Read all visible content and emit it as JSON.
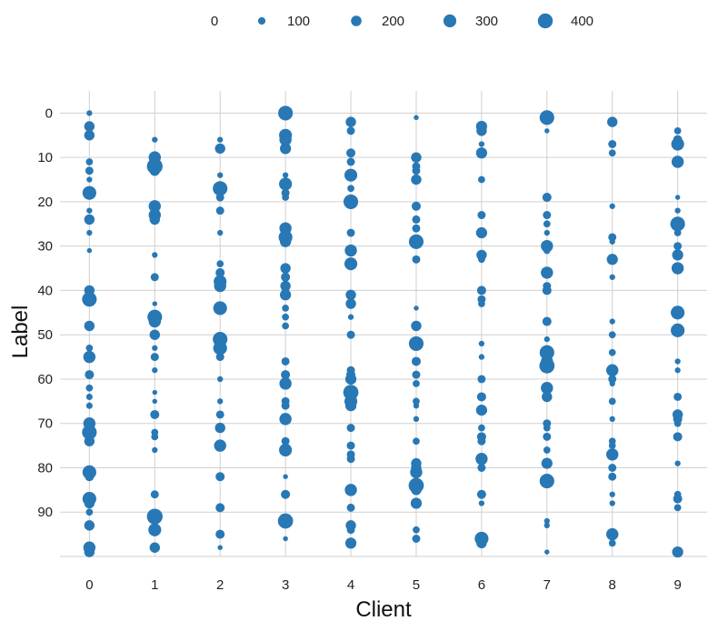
{
  "chart_data": {
    "type": "scatter",
    "encoding": "bubble",
    "xlabel": "Client",
    "ylabel": "Label",
    "y_inverted": true,
    "x_ticks": [
      0,
      1,
      2,
      3,
      4,
      5,
      6,
      7,
      8,
      9
    ],
    "y_ticks": [
      0,
      10,
      20,
      30,
      40,
      50,
      60,
      70,
      80,
      90
    ],
    "xlim": [
      -0.45,
      9.45
    ],
    "ylim": [
      100,
      -5
    ],
    "grid": true,
    "legend_placement": "top",
    "size_legend": [
      {
        "label": "0",
        "value": 0
      },
      {
        "label": "100",
        "value": 100
      },
      {
        "label": "200",
        "value": 200
      },
      {
        "label": "300",
        "value": 300
      },
      {
        "label": "400",
        "value": 400
      }
    ],
    "color": "#2878b5",
    "points": [
      {
        "x": 0,
        "y": 0,
        "size": 40
      },
      {
        "x": 0,
        "y": 3,
        "size": 130
      },
      {
        "x": 0,
        "y": 5,
        "size": 130
      },
      {
        "x": 0,
        "y": 11,
        "size": 60
      },
      {
        "x": 0,
        "y": 13,
        "size": 80
      },
      {
        "x": 0,
        "y": 15,
        "size": 40
      },
      {
        "x": 0,
        "y": 18,
        "size": 230
      },
      {
        "x": 0,
        "y": 22,
        "size": 40
      },
      {
        "x": 0,
        "y": 24,
        "size": 130
      },
      {
        "x": 0,
        "y": 27,
        "size": 40
      },
      {
        "x": 0,
        "y": 31,
        "size": 30
      },
      {
        "x": 0,
        "y": 40,
        "size": 130
      },
      {
        "x": 0,
        "y": 42,
        "size": 260
      },
      {
        "x": 0,
        "y": 48,
        "size": 130
      },
      {
        "x": 0,
        "y": 53,
        "size": 60
      },
      {
        "x": 0,
        "y": 55,
        "size": 180
      },
      {
        "x": 0,
        "y": 59,
        "size": 100
      },
      {
        "x": 0,
        "y": 62,
        "size": 60
      },
      {
        "x": 0,
        "y": 64,
        "size": 50
      },
      {
        "x": 0,
        "y": 66,
        "size": 50
      },
      {
        "x": 0,
        "y": 70,
        "size": 180
      },
      {
        "x": 0,
        "y": 72,
        "size": 260
      },
      {
        "x": 0,
        "y": 74,
        "size": 130
      },
      {
        "x": 0,
        "y": 81,
        "size": 230
      },
      {
        "x": 0,
        "y": 82,
        "size": 100
      },
      {
        "x": 0,
        "y": 87,
        "size": 230
      },
      {
        "x": 0,
        "y": 88,
        "size": 130
      },
      {
        "x": 0,
        "y": 90,
        "size": 60
      },
      {
        "x": 0,
        "y": 93,
        "size": 130
      },
      {
        "x": 0,
        "y": 98,
        "size": 180
      },
      {
        "x": 0,
        "y": 99,
        "size": 130
      },
      {
        "x": 1,
        "y": 6,
        "size": 40
      },
      {
        "x": 1,
        "y": 10,
        "size": 180
      },
      {
        "x": 1,
        "y": 12,
        "size": 300
      },
      {
        "x": 1,
        "y": 13,
        "size": 130
      },
      {
        "x": 1,
        "y": 21,
        "size": 180
      },
      {
        "x": 1,
        "y": 23,
        "size": 180
      },
      {
        "x": 1,
        "y": 24,
        "size": 130
      },
      {
        "x": 1,
        "y": 32,
        "size": 40
      },
      {
        "x": 1,
        "y": 37,
        "size": 80
      },
      {
        "x": 1,
        "y": 43,
        "size": 30
      },
      {
        "x": 1,
        "y": 46,
        "size": 260
      },
      {
        "x": 1,
        "y": 47,
        "size": 180
      },
      {
        "x": 1,
        "y": 50,
        "size": 130
      },
      {
        "x": 1,
        "y": 53,
        "size": 40
      },
      {
        "x": 1,
        "y": 55,
        "size": 80
      },
      {
        "x": 1,
        "y": 58,
        "size": 40
      },
      {
        "x": 1,
        "y": 63,
        "size": 30
      },
      {
        "x": 1,
        "y": 65,
        "size": 30
      },
      {
        "x": 1,
        "y": 68,
        "size": 100
      },
      {
        "x": 1,
        "y": 72,
        "size": 60
      },
      {
        "x": 1,
        "y": 73,
        "size": 60
      },
      {
        "x": 1,
        "y": 76,
        "size": 40
      },
      {
        "x": 1,
        "y": 86,
        "size": 80
      },
      {
        "x": 1,
        "y": 91,
        "size": 300
      },
      {
        "x": 1,
        "y": 94,
        "size": 200
      },
      {
        "x": 1,
        "y": 98,
        "size": 130
      },
      {
        "x": 2,
        "y": 6,
        "size": 40
      },
      {
        "x": 2,
        "y": 8,
        "size": 130
      },
      {
        "x": 2,
        "y": 14,
        "size": 40
      },
      {
        "x": 2,
        "y": 17,
        "size": 260
      },
      {
        "x": 2,
        "y": 19,
        "size": 80
      },
      {
        "x": 2,
        "y": 22,
        "size": 80
      },
      {
        "x": 2,
        "y": 27,
        "size": 40
      },
      {
        "x": 2,
        "y": 34,
        "size": 60
      },
      {
        "x": 2,
        "y": 36,
        "size": 100
      },
      {
        "x": 2,
        "y": 38,
        "size": 200
      },
      {
        "x": 2,
        "y": 39,
        "size": 180
      },
      {
        "x": 2,
        "y": 44,
        "size": 230
      },
      {
        "x": 2,
        "y": 51,
        "size": 260
      },
      {
        "x": 2,
        "y": 53,
        "size": 230
      },
      {
        "x": 2,
        "y": 55,
        "size": 80
      },
      {
        "x": 2,
        "y": 60,
        "size": 40
      },
      {
        "x": 2,
        "y": 65,
        "size": 40
      },
      {
        "x": 2,
        "y": 68,
        "size": 80
      },
      {
        "x": 2,
        "y": 71,
        "size": 130
      },
      {
        "x": 2,
        "y": 75,
        "size": 180
      },
      {
        "x": 2,
        "y": 82,
        "size": 100
      },
      {
        "x": 2,
        "y": 89,
        "size": 100
      },
      {
        "x": 2,
        "y": 95,
        "size": 100
      },
      {
        "x": 2,
        "y": 98,
        "size": 30
      },
      {
        "x": 3,
        "y": 0,
        "size": 260
      },
      {
        "x": 3,
        "y": 5,
        "size": 200
      },
      {
        "x": 3,
        "y": 6,
        "size": 180
      },
      {
        "x": 3,
        "y": 8,
        "size": 150
      },
      {
        "x": 3,
        "y": 14,
        "size": 40
      },
      {
        "x": 3,
        "y": 16,
        "size": 200
      },
      {
        "x": 3,
        "y": 18,
        "size": 80
      },
      {
        "x": 3,
        "y": 19,
        "size": 60
      },
      {
        "x": 3,
        "y": 26,
        "size": 180
      },
      {
        "x": 3,
        "y": 28,
        "size": 230
      },
      {
        "x": 3,
        "y": 29,
        "size": 150
      },
      {
        "x": 3,
        "y": 35,
        "size": 130
      },
      {
        "x": 3,
        "y": 37,
        "size": 100
      },
      {
        "x": 3,
        "y": 39,
        "size": 130
      },
      {
        "x": 3,
        "y": 41,
        "size": 150
      },
      {
        "x": 3,
        "y": 44,
        "size": 60
      },
      {
        "x": 3,
        "y": 46,
        "size": 60
      },
      {
        "x": 3,
        "y": 48,
        "size": 60
      },
      {
        "x": 3,
        "y": 56,
        "size": 80
      },
      {
        "x": 3,
        "y": 59,
        "size": 100
      },
      {
        "x": 3,
        "y": 61,
        "size": 180
      },
      {
        "x": 3,
        "y": 65,
        "size": 80
      },
      {
        "x": 3,
        "y": 66,
        "size": 80
      },
      {
        "x": 3,
        "y": 69,
        "size": 180
      },
      {
        "x": 3,
        "y": 74,
        "size": 80
      },
      {
        "x": 3,
        "y": 76,
        "size": 200
      },
      {
        "x": 3,
        "y": 82,
        "size": 30
      },
      {
        "x": 3,
        "y": 86,
        "size": 100
      },
      {
        "x": 3,
        "y": 92,
        "size": 280
      },
      {
        "x": 3,
        "y": 96,
        "size": 30
      },
      {
        "x": 4,
        "y": 2,
        "size": 130
      },
      {
        "x": 4,
        "y": 4,
        "size": 80
      },
      {
        "x": 4,
        "y": 9,
        "size": 100
      },
      {
        "x": 4,
        "y": 11,
        "size": 80
      },
      {
        "x": 4,
        "y": 14,
        "size": 200
      },
      {
        "x": 4,
        "y": 17,
        "size": 60
      },
      {
        "x": 4,
        "y": 20,
        "size": 260
      },
      {
        "x": 4,
        "y": 27,
        "size": 80
      },
      {
        "x": 4,
        "y": 31,
        "size": 180
      },
      {
        "x": 4,
        "y": 34,
        "size": 200
      },
      {
        "x": 4,
        "y": 41,
        "size": 130
      },
      {
        "x": 4,
        "y": 43,
        "size": 130
      },
      {
        "x": 4,
        "y": 46,
        "size": 40
      },
      {
        "x": 4,
        "y": 50,
        "size": 80
      },
      {
        "x": 4,
        "y": 58,
        "size": 80
      },
      {
        "x": 4,
        "y": 59,
        "size": 100
      },
      {
        "x": 4,
        "y": 60,
        "size": 150
      },
      {
        "x": 4,
        "y": 63,
        "size": 280
      },
      {
        "x": 4,
        "y": 65,
        "size": 200
      },
      {
        "x": 4,
        "y": 66,
        "size": 150
      },
      {
        "x": 4,
        "y": 71,
        "size": 80
      },
      {
        "x": 4,
        "y": 75,
        "size": 80
      },
      {
        "x": 4,
        "y": 77,
        "size": 80
      },
      {
        "x": 4,
        "y": 78,
        "size": 80
      },
      {
        "x": 4,
        "y": 85,
        "size": 180
      },
      {
        "x": 4,
        "y": 89,
        "size": 80
      },
      {
        "x": 4,
        "y": 93,
        "size": 130
      },
      {
        "x": 4,
        "y": 94,
        "size": 80
      },
      {
        "x": 4,
        "y": 97,
        "size": 150
      },
      {
        "x": 5,
        "y": 1,
        "size": 30
      },
      {
        "x": 5,
        "y": 10,
        "size": 130
      },
      {
        "x": 5,
        "y": 12,
        "size": 80
      },
      {
        "x": 5,
        "y": 13,
        "size": 80
      },
      {
        "x": 5,
        "y": 15,
        "size": 130
      },
      {
        "x": 5,
        "y": 21,
        "size": 100
      },
      {
        "x": 5,
        "y": 24,
        "size": 80
      },
      {
        "x": 5,
        "y": 26,
        "size": 80
      },
      {
        "x": 5,
        "y": 29,
        "size": 260
      },
      {
        "x": 5,
        "y": 33,
        "size": 80
      },
      {
        "x": 5,
        "y": 44,
        "size": 30
      },
      {
        "x": 5,
        "y": 48,
        "size": 130
      },
      {
        "x": 5,
        "y": 52,
        "size": 260
      },
      {
        "x": 5,
        "y": 56,
        "size": 100
      },
      {
        "x": 5,
        "y": 59,
        "size": 80
      },
      {
        "x": 5,
        "y": 61,
        "size": 60
      },
      {
        "x": 5,
        "y": 65,
        "size": 60
      },
      {
        "x": 5,
        "y": 66,
        "size": 40
      },
      {
        "x": 5,
        "y": 69,
        "size": 40
      },
      {
        "x": 5,
        "y": 74,
        "size": 60
      },
      {
        "x": 5,
        "y": 79,
        "size": 130
      },
      {
        "x": 5,
        "y": 80,
        "size": 130
      },
      {
        "x": 5,
        "y": 81,
        "size": 180
      },
      {
        "x": 5,
        "y": 84,
        "size": 280
      },
      {
        "x": 5,
        "y": 85,
        "size": 130
      },
      {
        "x": 5,
        "y": 88,
        "size": 150
      },
      {
        "x": 5,
        "y": 94,
        "size": 60
      },
      {
        "x": 5,
        "y": 96,
        "size": 80
      },
      {
        "x": 6,
        "y": 3,
        "size": 150
      },
      {
        "x": 6,
        "y": 4,
        "size": 130
      },
      {
        "x": 6,
        "y": 7,
        "size": 40
      },
      {
        "x": 6,
        "y": 9,
        "size": 150
      },
      {
        "x": 6,
        "y": 15,
        "size": 60
      },
      {
        "x": 6,
        "y": 23,
        "size": 80
      },
      {
        "x": 6,
        "y": 27,
        "size": 150
      },
      {
        "x": 6,
        "y": 32,
        "size": 130
      },
      {
        "x": 6,
        "y": 33,
        "size": 60
      },
      {
        "x": 6,
        "y": 40,
        "size": 100
      },
      {
        "x": 6,
        "y": 42,
        "size": 80
      },
      {
        "x": 6,
        "y": 43,
        "size": 60
      },
      {
        "x": 6,
        "y": 52,
        "size": 40
      },
      {
        "x": 6,
        "y": 55,
        "size": 40
      },
      {
        "x": 6,
        "y": 60,
        "size": 80
      },
      {
        "x": 6,
        "y": 64,
        "size": 100
      },
      {
        "x": 6,
        "y": 67,
        "size": 150
      },
      {
        "x": 6,
        "y": 71,
        "size": 60
      },
      {
        "x": 6,
        "y": 73,
        "size": 100
      },
      {
        "x": 6,
        "y": 74,
        "size": 80
      },
      {
        "x": 6,
        "y": 78,
        "size": 180
      },
      {
        "x": 6,
        "y": 80,
        "size": 80
      },
      {
        "x": 6,
        "y": 86,
        "size": 100
      },
      {
        "x": 6,
        "y": 88,
        "size": 40
      },
      {
        "x": 6,
        "y": 96,
        "size": 230
      },
      {
        "x": 6,
        "y": 97,
        "size": 130
      },
      {
        "x": 7,
        "y": 1,
        "size": 260
      },
      {
        "x": 7,
        "y": 4,
        "size": 30
      },
      {
        "x": 7,
        "y": 19,
        "size": 100
      },
      {
        "x": 7,
        "y": 23,
        "size": 80
      },
      {
        "x": 7,
        "y": 25,
        "size": 60
      },
      {
        "x": 7,
        "y": 27,
        "size": 40
      },
      {
        "x": 7,
        "y": 30,
        "size": 180
      },
      {
        "x": 7,
        "y": 31,
        "size": 60
      },
      {
        "x": 7,
        "y": 36,
        "size": 180
      },
      {
        "x": 7,
        "y": 39,
        "size": 80
      },
      {
        "x": 7,
        "y": 40,
        "size": 100
      },
      {
        "x": 7,
        "y": 47,
        "size": 100
      },
      {
        "x": 7,
        "y": 51,
        "size": 40
      },
      {
        "x": 7,
        "y": 54,
        "size": 260
      },
      {
        "x": 7,
        "y": 56,
        "size": 180
      },
      {
        "x": 7,
        "y": 57,
        "size": 280
      },
      {
        "x": 7,
        "y": 62,
        "size": 180
      },
      {
        "x": 7,
        "y": 64,
        "size": 130
      },
      {
        "x": 7,
        "y": 70,
        "size": 80
      },
      {
        "x": 7,
        "y": 71,
        "size": 60
      },
      {
        "x": 7,
        "y": 73,
        "size": 80
      },
      {
        "x": 7,
        "y": 76,
        "size": 60
      },
      {
        "x": 7,
        "y": 79,
        "size": 150
      },
      {
        "x": 7,
        "y": 83,
        "size": 260
      },
      {
        "x": 7,
        "y": 92,
        "size": 40
      },
      {
        "x": 7,
        "y": 93,
        "size": 40
      },
      {
        "x": 7,
        "y": 99,
        "size": 30
      },
      {
        "x": 8,
        "y": 2,
        "size": 130
      },
      {
        "x": 8,
        "y": 7,
        "size": 80
      },
      {
        "x": 8,
        "y": 9,
        "size": 60
      },
      {
        "x": 8,
        "y": 21,
        "size": 40
      },
      {
        "x": 8,
        "y": 28,
        "size": 80
      },
      {
        "x": 8,
        "y": 29,
        "size": 40
      },
      {
        "x": 8,
        "y": 33,
        "size": 150
      },
      {
        "x": 8,
        "y": 37,
        "size": 40
      },
      {
        "x": 8,
        "y": 47,
        "size": 40
      },
      {
        "x": 8,
        "y": 50,
        "size": 60
      },
      {
        "x": 8,
        "y": 54,
        "size": 60
      },
      {
        "x": 8,
        "y": 58,
        "size": 180
      },
      {
        "x": 8,
        "y": 60,
        "size": 80
      },
      {
        "x": 8,
        "y": 61,
        "size": 40
      },
      {
        "x": 8,
        "y": 65,
        "size": 60
      },
      {
        "x": 8,
        "y": 69,
        "size": 40
      },
      {
        "x": 8,
        "y": 74,
        "size": 60
      },
      {
        "x": 8,
        "y": 75,
        "size": 60
      },
      {
        "x": 8,
        "y": 77,
        "size": 180
      },
      {
        "x": 8,
        "y": 80,
        "size": 80
      },
      {
        "x": 8,
        "y": 82,
        "size": 80
      },
      {
        "x": 8,
        "y": 86,
        "size": 40
      },
      {
        "x": 8,
        "y": 88,
        "size": 40
      },
      {
        "x": 8,
        "y": 95,
        "size": 180
      },
      {
        "x": 8,
        "y": 97,
        "size": 60
      },
      {
        "x": 9,
        "y": 4,
        "size": 60
      },
      {
        "x": 9,
        "y": 6,
        "size": 100
      },
      {
        "x": 9,
        "y": 7,
        "size": 200
      },
      {
        "x": 9,
        "y": 11,
        "size": 180
      },
      {
        "x": 9,
        "y": 19,
        "size": 30
      },
      {
        "x": 9,
        "y": 22,
        "size": 40
      },
      {
        "x": 9,
        "y": 25,
        "size": 260
      },
      {
        "x": 9,
        "y": 27,
        "size": 60
      },
      {
        "x": 9,
        "y": 30,
        "size": 80
      },
      {
        "x": 9,
        "y": 32,
        "size": 150
      },
      {
        "x": 9,
        "y": 35,
        "size": 180
      },
      {
        "x": 9,
        "y": 45,
        "size": 230
      },
      {
        "x": 9,
        "y": 49,
        "size": 230
      },
      {
        "x": 9,
        "y": 56,
        "size": 40
      },
      {
        "x": 9,
        "y": 58,
        "size": 40
      },
      {
        "x": 9,
        "y": 64,
        "size": 80
      },
      {
        "x": 9,
        "y": 68,
        "size": 130
      },
      {
        "x": 9,
        "y": 69,
        "size": 100
      },
      {
        "x": 9,
        "y": 70,
        "size": 60
      },
      {
        "x": 9,
        "y": 73,
        "size": 100
      },
      {
        "x": 9,
        "y": 79,
        "size": 40
      },
      {
        "x": 9,
        "y": 86,
        "size": 60
      },
      {
        "x": 9,
        "y": 87,
        "size": 100
      },
      {
        "x": 9,
        "y": 89,
        "size": 60
      },
      {
        "x": 9,
        "y": 99,
        "size": 150
      }
    ]
  }
}
